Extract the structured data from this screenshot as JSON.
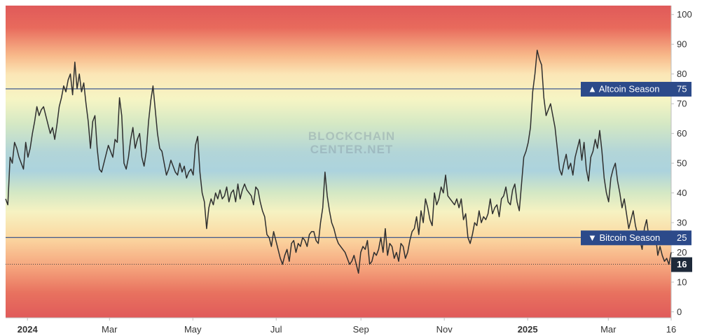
{
  "watermark": {
    "line1": "BLOCKCHAIN",
    "line2": "CENTER.NET"
  },
  "chart_data": {
    "type": "line",
    "title": "",
    "xlabel": "",
    "ylabel": "",
    "ylim": [
      -2,
      103
    ],
    "y_ticks": [
      "0",
      "10",
      "20",
      "30",
      "40",
      "50",
      "60",
      "70",
      "80",
      "90",
      "100"
    ],
    "x_tick_labels": [
      {
        "text": "2024",
        "bold": true
      },
      {
        "text": "Mar",
        "bold": false
      },
      {
        "text": "May",
        "bold": false
      },
      {
        "text": "Jul",
        "bold": false
      },
      {
        "text": "Sep",
        "bold": false
      },
      {
        "text": "Nov",
        "bold": false
      },
      {
        "text": "2025",
        "bold": true
      },
      {
        "text": "Mar",
        "bold": false
      },
      {
        "text": "16",
        "bold": false
      }
    ],
    "x_range": [
      "2023-12-16",
      "2025-04-16"
    ],
    "grid": false,
    "line_color": "#2f2f2f",
    "reference_lines": [
      {
        "label": "▲ Altcoin Season",
        "value": 75,
        "color": "#2c4a8a",
        "style": "solid"
      },
      {
        "label": "▼ Bitcoin Season",
        "value": 25,
        "color": "#2c4a8a",
        "style": "solid"
      }
    ],
    "current_value": {
      "value": 16,
      "label": "16",
      "color": "#1e2a3a"
    },
    "series": [
      {
        "values": [
          38,
          36,
          52,
          50,
          57,
          55,
          52,
          50,
          48,
          57,
          52,
          55,
          60,
          64,
          69,
          66,
          68,
          69,
          66,
          63,
          60,
          62,
          58,
          63,
          69,
          72,
          76,
          74,
          78,
          80,
          73,
          84,
          75,
          80,
          74,
          77,
          70,
          64,
          55,
          64,
          66,
          55,
          48,
          47,
          50,
          53,
          56,
          54,
          52,
          58,
          57,
          72,
          66,
          50,
          48,
          52,
          58,
          62,
          55,
          58,
          60,
          52,
          49,
          54,
          64,
          71,
          76,
          68,
          60,
          55,
          54,
          50,
          46,
          48,
          51,
          49,
          47,
          46,
          50,
          47,
          49,
          45,
          47,
          48,
          46,
          56,
          59,
          47,
          40,
          37,
          28,
          35,
          38,
          36,
          40,
          38,
          41,
          38,
          39,
          42,
          37,
          40,
          41,
          37,
          43,
          38,
          41,
          43,
          41,
          40,
          39,
          36,
          42,
          41,
          37,
          34,
          32,
          26,
          25,
          22,
          27,
          24,
          21,
          18,
          16,
          19,
          21,
          17,
          23,
          24,
          20,
          23,
          22,
          25,
          24,
          22,
          26,
          27,
          27,
          24,
          23,
          30,
          35,
          47,
          39,
          34,
          30,
          28,
          25,
          23,
          22,
          21,
          20,
          18,
          16,
          17,
          19,
          16,
          13,
          20,
          22,
          21,
          24,
          16,
          17,
          20,
          19,
          21,
          25,
          20,
          28,
          19,
          23,
          22,
          18,
          20,
          17,
          23,
          22,
          18,
          20,
          24,
          27,
          28,
          32,
          26,
          34,
          30,
          38,
          35,
          31,
          29,
          40,
          36,
          38,
          42,
          40,
          46,
          39,
          38,
          37,
          36,
          38,
          35,
          38,
          31,
          33,
          25,
          23,
          26,
          30,
          29,
          34,
          30,
          32,
          31,
          33,
          38,
          33,
          35,
          36,
          32,
          38,
          39,
          42,
          37,
          36,
          41,
          43,
          37,
          34,
          43,
          52,
          54,
          57,
          62,
          74,
          80,
          88,
          85,
          83,
          72,
          66,
          68,
          70,
          66,
          62,
          55,
          48,
          46,
          50,
          53,
          48,
          50,
          46,
          52,
          55,
          58,
          51,
          57,
          48,
          44,
          52,
          54,
          58,
          55,
          61,
          54,
          45,
          40,
          37,
          45,
          48,
          50,
          44,
          40,
          35,
          38,
          33,
          28,
          31,
          34,
          29,
          26,
          24,
          21,
          28,
          31,
          25,
          23,
          24,
          26,
          19,
          22,
          19,
          17,
          18,
          16,
          20
        ]
      }
    ]
  }
}
